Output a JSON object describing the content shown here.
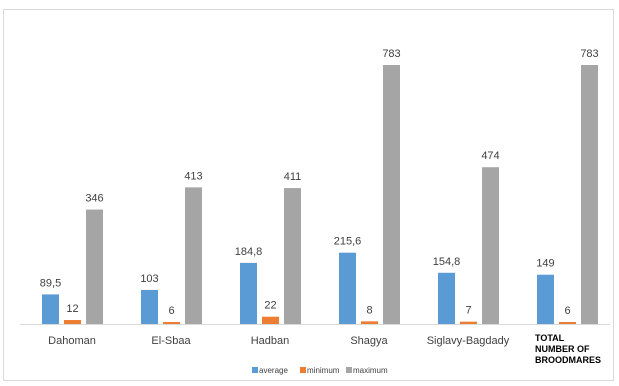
{
  "chart_data": {
    "type": "bar",
    "categories": [
      "Dahoman",
      "El-Sbaa",
      "Hadban",
      "Shagya",
      "Siglavy-Bagdady",
      "TOTAL NUMBER OF BROODMARES"
    ],
    "category_label_lines": [
      [
        "Dahoman"
      ],
      [
        "El-Sbaa"
      ],
      [
        "Hadban"
      ],
      [
        "Shagya"
      ],
      [
        "Siglavy-Bagdady"
      ],
      [
        "TOTAL",
        "NUMBER OF",
        "BROODMARES"
      ]
    ],
    "series": [
      {
        "name": "average",
        "color": "#5b9bd5",
        "values": [
          89.5,
          103,
          184.8,
          215.6,
          154.8,
          149
        ],
        "labels": [
          "89,5",
          "103",
          "184,8",
          "215,6",
          "154,8",
          "149"
        ]
      },
      {
        "name": "minimum",
        "color": "#ed7d31",
        "values": [
          12,
          6,
          22,
          8,
          7,
          6
        ],
        "labels": [
          "12",
          "6",
          "22",
          "8",
          "7",
          "6"
        ]
      },
      {
        "name": "maximum",
        "color": "#a5a5a5",
        "values": [
          346,
          413,
          411,
          783,
          474,
          783
        ],
        "labels": [
          "346",
          "413",
          "411",
          "783",
          "474",
          "783"
        ]
      }
    ],
    "ylim": [
      0,
      800
    ],
    "grid": false,
    "legend_position": "bottom",
    "title": "",
    "xlabel": "",
    "ylabel": ""
  }
}
